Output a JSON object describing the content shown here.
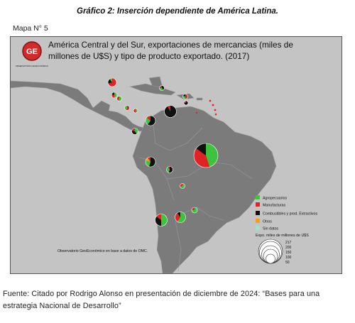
{
  "caption": {
    "title": "Gráfico 2: Inserción dependiente de América Latina."
  },
  "map_label": "Mapa N° 5",
  "map": {
    "title_line1": "América Central y del Sur, exportaciones de mercancias (miles de",
    "title_line2": "millones de U$S) y tipo de producto exportado. (2017)",
    "logo_text": "GE",
    "logo_caption": "OBSERVATORIO GEOECONÓMICO",
    "credit": "Observatorio GeoEconómico en base a datos de OMC.",
    "colors": {
      "background": "#c4c4c4",
      "land": "#7b7b7b",
      "land_stroke": "#9a9a9a",
      "sea": "#c7c7c7",
      "agropecuarios": "#3ec33e",
      "manufacturas": "#e02323",
      "extractivos": "#111111",
      "otros": "#f2a11a",
      "sin_datos": "#9fe1cf"
    },
    "legend": {
      "items": [
        {
          "label": "Agropecuarios",
          "color": "#3ec33e"
        },
        {
          "label": "Manufacturas",
          "color": "#e02323"
        },
        {
          "label": "Combustibles y prod. Extractivos",
          "color": "#111111"
        },
        {
          "label": "Otros",
          "color": "#f2a11a"
        },
        {
          "label": "Sin datos",
          "color": "#9fe1cf"
        }
      ],
      "size_title": "Expo. miles de millones de U$S",
      "size_values": [
        "217",
        "200",
        "150",
        "100",
        "50"
      ]
    }
  }
}
